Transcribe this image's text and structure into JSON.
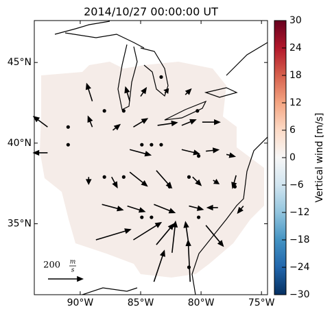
{
  "chart_data": {
    "type": "quiver",
    "title": "2014/10/27 00:00:00 UT",
    "xlim": [
      -93.8,
      -74.5
    ],
    "ylim": [
      30.6,
      47.6
    ],
    "xticks": [
      {
        "value": -90,
        "label": "90°W"
      },
      {
        "value": -85,
        "label": "85°W"
      },
      {
        "value": -80,
        "label": "80°W"
      },
      {
        "value": -75,
        "label": "75°W"
      }
    ],
    "yticks": [
      {
        "value": 35,
        "label": "35°N"
      },
      {
        "value": 40,
        "label": "40°N"
      },
      {
        "value": 45,
        "label": "45°N"
      }
    ],
    "x": [
      -89.0,
      -85.9,
      -85.0,
      -83.0,
      -81.3,
      -88.0,
      -86.4,
      -83.3,
      -80.3,
      -92.7,
      -91.0,
      -89.0,
      -87.3,
      -85.6,
      -83.6,
      -81.6,
      -79.9,
      -92.7,
      -91.0,
      -84.9,
      -84.1,
      -83.3,
      -85.9,
      -81.6,
      -79.6,
      -77.9,
      -80.2,
      -89.3,
      -88.0,
      -86.4,
      -87.4,
      -85.9,
      -83.7,
      -82.6,
      -81.0,
      -80.7,
      -79.0,
      -77.1,
      -77.2,
      -88.2,
      -86.1,
      -83.9,
      -81.0,
      -78.6,
      -76.5,
      -84.9,
      -84.1,
      -80.2,
      -88.7,
      -85.6,
      -83.7,
      -82.4,
      -81.0,
      -79.6,
      -83.9,
      -80.9,
      -81.0
    ],
    "y": [
      42.6,
      42.6,
      42.9,
      43.1,
      43.0,
      42.0,
      42.0,
      44.1,
      42.0,
      41.0,
      41.0,
      41.0,
      40.8,
      41.0,
      41.1,
      41.1,
      41.3,
      39.4,
      39.9,
      39.9,
      39.9,
      39.9,
      39.6,
      39.6,
      39.5,
      39.3,
      39.2,
      37.9,
      37.9,
      37.9,
      37.9,
      38.2,
      38.3,
      37.3,
      37.9,
      37.9,
      37.7,
      38.0,
      37.3,
      36.2,
      36.1,
      36.2,
      36.1,
      36.0,
      36.1,
      35.4,
      35.4,
      35.4,
      34.0,
      34.0,
      33.7,
      33.2,
      33.6,
      34.9,
      31.4,
      31.4,
      32.3
    ],
    "u": [
      -32,
      -24,
      32,
      20,
      32,
      0,
      0,
      0,
      0,
      -80,
      0,
      -24,
      40,
      80,
      112,
      80,
      100,
      -80,
      0,
      0,
      0,
      0,
      120,
      100,
      72,
      48,
      0,
      0,
      0,
      0,
      32,
      100,
      88,
      0,
      0,
      48,
      32,
      -20,
      0,
      120,
      100,
      120,
      80,
      -60,
      -32,
      0,
      0,
      0,
      200,
      160,
      100,
      20,
      -20,
      100,
      60,
      -12,
      0
    ],
    "v": [
      100,
      80,
      48,
      24,
      32,
      0,
      0,
      0,
      0,
      60,
      0,
      60,
      32,
      48,
      16,
      32,
      0,
      0,
      0,
      0,
      0,
      0,
      -32,
      -24,
      8,
      -12,
      0,
      -40,
      0,
      0,
      -60,
      -80,
      -100,
      0,
      0,
      -48,
      -20,
      -72,
      0,
      -32,
      -32,
      -48,
      -20,
      0,
      -40,
      0,
      0,
      0,
      60,
      100,
      120,
      180,
      140,
      -120,
      180,
      240,
      0
    ],
    "color": "#000000",
    "key_value": 200,
    "key_unit_top": "m",
    "key_unit_bottom": "s",
    "colorbar": {
      "label": "Vertical wind [m/s]",
      "lim": [
        -30,
        30
      ],
      "ticks": [
        {
          "value": -30,
          "label": "−30"
        },
        {
          "value": -24,
          "label": "−24"
        },
        {
          "value": -18,
          "label": "−18"
        },
        {
          "value": -12,
          "label": "−12"
        },
        {
          "value": -6,
          "label": "−6"
        },
        0,
        6,
        12,
        18,
        24,
        30
      ],
      "colors": [
        "#053061",
        "#2166ac",
        "#4393c3",
        "#92c5de",
        "#d1e5f0",
        "#f7f7f7",
        "#fddbc7",
        "#f4a582",
        "#d6604d",
        "#b2182b",
        "#67001f"
      ]
    }
  }
}
